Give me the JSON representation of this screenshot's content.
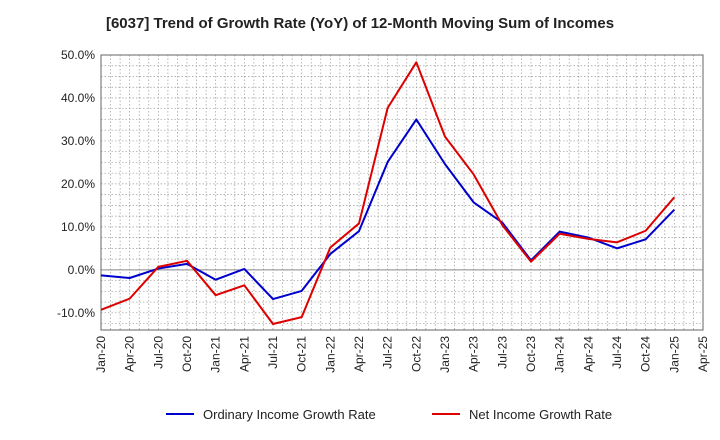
{
  "chart_data": {
    "type": "line",
    "title": "[6037]  Trend of Growth Rate (YoY) of 12-Month Moving Sum of Incomes",
    "xlabel": "",
    "ylabel": "",
    "ylim": [
      -14,
      50
    ],
    "yticks": [
      "50.0%",
      "40.0%",
      "30.0%",
      "20.0%",
      "10.0%",
      "0.0%",
      "-10.0%"
    ],
    "ytick_values": [
      50,
      40,
      30,
      20,
      10,
      0,
      -10
    ],
    "x_tick_labels": [
      "Jan-20",
      "Apr-20",
      "Jul-20",
      "Oct-20",
      "Jan-21",
      "Apr-21",
      "Jul-21",
      "Oct-21",
      "Jan-22",
      "Apr-22",
      "Jul-22",
      "Oct-22",
      "Jan-23",
      "Apr-23",
      "Jul-23",
      "Oct-23",
      "Jan-24",
      "Apr-24",
      "Jul-24",
      "Oct-24",
      "Jan-25",
      "Apr-25"
    ],
    "grid": true,
    "legend_position": "bottom",
    "series": [
      {
        "name": "Ordinary Income Growth Rate",
        "color": "#0000cc",
        "values": [
          -1.3,
          -1.9,
          0.3,
          1.4,
          -2.3,
          0.2,
          -6.8,
          -4.9,
          3.7,
          9.0,
          25.1,
          35.0,
          24.6,
          15.7,
          11.0,
          2.2,
          8.9,
          7.5,
          5.0,
          7.1,
          14.0
        ]
      },
      {
        "name": "Net Income Growth Rate",
        "color": "#dd0000",
        "values": [
          -9.3,
          -6.7,
          0.7,
          2.1,
          -5.9,
          -3.6,
          -12.6,
          -11.0,
          5.2,
          10.8,
          37.7,
          48.3,
          31.0,
          22.2,
          10.4,
          1.9,
          8.4,
          7.2,
          6.4,
          9.1,
          16.9
        ]
      }
    ]
  }
}
